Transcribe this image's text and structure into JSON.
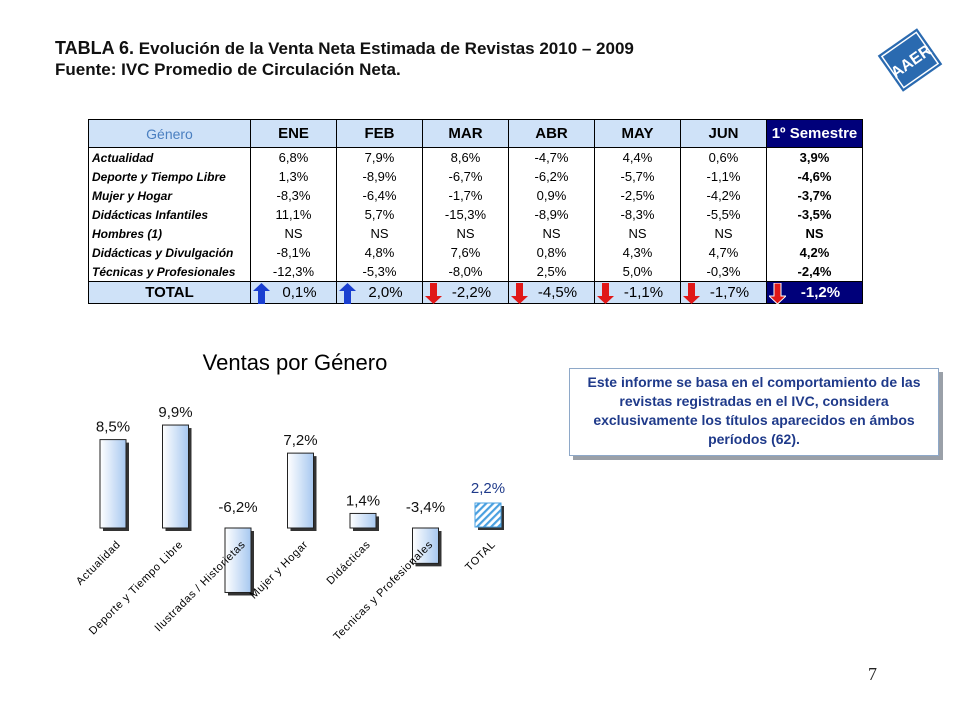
{
  "header": {
    "title_prefix": "TABLA 6.",
    "title_text": "Evolución de la Venta Neta Estimada de Revistas 2010 – 2009",
    "subtitle": "Fuente: IVC Promedio de Circulación Neta."
  },
  "logo": {
    "text": "AAER",
    "color": "#2a6ab0"
  },
  "table": {
    "headers": [
      "Género",
      "ENE",
      "FEB",
      "MAR",
      "ABR",
      "MAY",
      "JUN",
      "1º Semestre"
    ],
    "rows": [
      {
        "label": "Actualidad",
        "values": [
          "6,8%",
          "7,9%",
          "8,6%",
          "-4,7%",
          "4,4%",
          "0,6%"
        ],
        "semestre": "3,9%"
      },
      {
        "label": "Deporte y Tiempo Libre",
        "values": [
          "1,3%",
          "-8,9%",
          "-6,7%",
          "-6,2%",
          "-5,7%",
          "-1,1%"
        ],
        "semestre": "-4,6%"
      },
      {
        "label": "Mujer y Hogar",
        "values": [
          "-8,3%",
          "-6,4%",
          "-1,7%",
          "0,9%",
          "-2,5%",
          "-4,2%"
        ],
        "semestre": "-3,7%"
      },
      {
        "label": "Didácticas Infantiles",
        "values": [
          "11,1%",
          "5,7%",
          "-15,3%",
          "-8,9%",
          "-8,3%",
          "-5,5%"
        ],
        "semestre": "-3,5%"
      },
      {
        "label": "Hombres (1)",
        "values": [
          "NS",
          "NS",
          "NS",
          "NS",
          "NS",
          "NS"
        ],
        "semestre": "NS"
      },
      {
        "label": "Didácticas y Divulgación",
        "values": [
          "-8,1%",
          "4,8%",
          "7,6%",
          "0,8%",
          "4,3%",
          "4,7%"
        ],
        "semestre": "4,2%"
      },
      {
        "label": "Técnicas y Profesionales",
        "values": [
          "-12,3%",
          "-5,3%",
          "-8,0%",
          "2,5%",
          "5,0%",
          "-0,3%"
        ],
        "semestre": "-2,4%"
      }
    ],
    "total": {
      "label": "TOTAL",
      "values": [
        "0,1%",
        "2,0%",
        "-2,2%",
        "-4,5%",
        "-1,1%",
        "-1,7%"
      ],
      "semestre": "-1,2%",
      "trends": [
        "up",
        "up",
        "down",
        "down",
        "down",
        "down",
        "down"
      ]
    },
    "colors": {
      "header_bg": "#cfe2f8",
      "semester_bg": "#00007a",
      "arrow_up": "#1a3fd0",
      "arrow_down": "#e01818"
    }
  },
  "chart_data": {
    "type": "bar",
    "title": "Ventas por Género",
    "categories": [
      "Actualidad",
      "Deporte y Tiempo Libre",
      "Ilustradas / Historietas",
      "Mujer y Hogar",
      "Didácticas",
      "Tecnicas y Profesionales",
      "TOTAL"
    ],
    "values": [
      8.5,
      9.9,
      -6.2,
      7.2,
      1.4,
      -3.4,
      2.2
    ],
    "labels": [
      "8,5%",
      "9,9%",
      "-6,2%",
      "7,2%",
      "1,4%",
      "-3,4%",
      "2,2%"
    ],
    "total_label_color": "#1f3a8a",
    "bar_color": "#a7c8f0",
    "xlabel": "",
    "ylabel": ""
  },
  "note": {
    "text": "Este informe se basa en el comportamiento de las revistas registradas en el IVC, considera exclusivamente los títulos aparecidos en ámbos períodos (62)."
  },
  "page_number": "7"
}
